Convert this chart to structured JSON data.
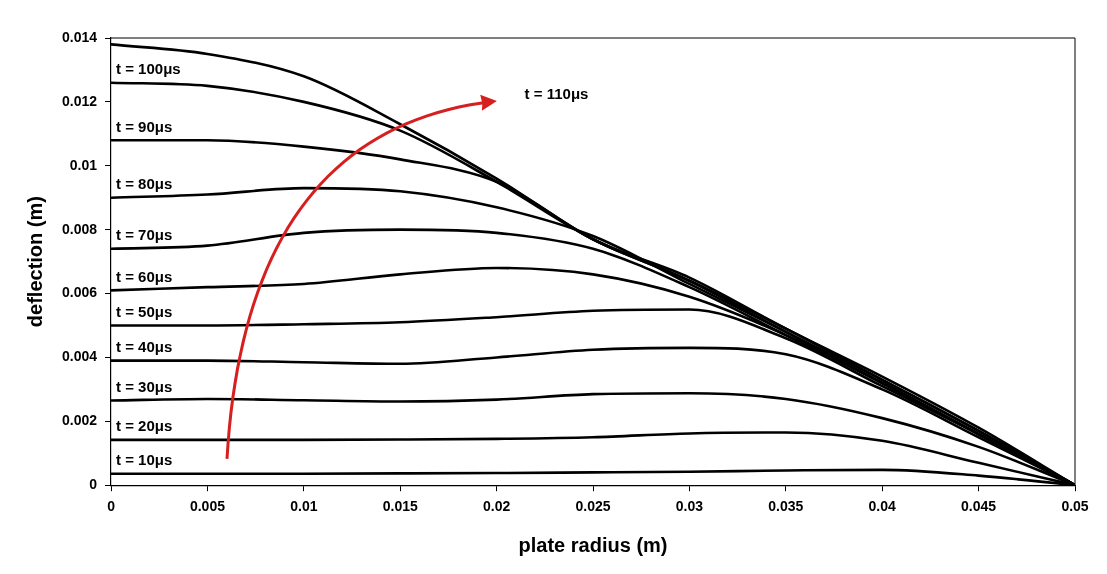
{
  "chart_data": {
    "type": "line",
    "xlabel": "plate radius (m)",
    "ylabel": "deflection (m)",
    "x": [
      0,
      0.005,
      0.01,
      0.015,
      0.02,
      0.025,
      0.03,
      0.035,
      0.04,
      0.045,
      0.05
    ],
    "xlim": [
      0,
      0.05
    ],
    "xticks": [
      0,
      0.005,
      0.01,
      0.015,
      0.02,
      0.025,
      0.03,
      0.035,
      0.04,
      0.045,
      0.05
    ],
    "ylim": [
      0,
      0.014
    ],
    "yticks": [
      0,
      0.002,
      0.004,
      0.006,
      0.008,
      0.01,
      0.012,
      0.014
    ],
    "annotations": [
      "t = 110μs"
    ],
    "grid": false,
    "legend": false,
    "marker": "none",
    "line_style": "solid",
    "series": [
      {
        "name": "t = 10μs",
        "color": "#000000",
        "values": [
          0.00036,
          0.00036,
          0.00036,
          0.00037,
          0.00038,
          0.0004,
          0.00042,
          0.00046,
          0.00048,
          0.0003,
          0
        ]
      },
      {
        "name": "t = 20μs",
        "color": "#000000",
        "values": [
          0.00142,
          0.00142,
          0.00142,
          0.00143,
          0.00145,
          0.0015,
          0.00162,
          0.00165,
          0.00139,
          0.0007,
          0
        ]
      },
      {
        "name": "t = 30μs",
        "color": "#000000",
        "values": [
          0.00265,
          0.0027,
          0.00266,
          0.00262,
          0.00268,
          0.00285,
          0.00288,
          0.0027,
          0.0021,
          0.0012,
          0
        ]
      },
      {
        "name": "t = 40μs",
        "color": "#000000",
        "values": [
          0.0039,
          0.0039,
          0.00385,
          0.0038,
          0.004,
          0.00424,
          0.0043,
          0.0041,
          0.003,
          0.0015,
          0
        ]
      },
      {
        "name": "t = 50μs",
        "color": "#000000",
        "values": [
          0.005,
          0.005,
          0.00504,
          0.0051,
          0.00526,
          0.00546,
          0.0055,
          0.0046,
          0.0031,
          0.0016,
          0
        ]
      },
      {
        "name": "t = 60μs",
        "color": "#000000",
        "values": [
          0.0061,
          0.0062,
          0.0063,
          0.0066,
          0.0068,
          0.0066,
          0.0059,
          0.0047,
          0.0032,
          0.0016,
          0
        ]
      },
      {
        "name": "t = 70μs",
        "color": "#000000",
        "values": [
          0.0074,
          0.0075,
          0.0079,
          0.008,
          0.0079,
          0.0074,
          0.0062,
          0.0047,
          0.0032,
          0.0016,
          0
        ]
      },
      {
        "name": "t = 80μs",
        "color": "#000000",
        "values": [
          0.009,
          0.0091,
          0.0093,
          0.0092,
          0.0087,
          0.0078,
          0.0063,
          0.0048,
          0.0032,
          0.0016,
          0
        ]
      },
      {
        "name": "t = 90μs",
        "color": "#000000",
        "values": [
          0.0108,
          0.0108,
          0.0106,
          0.0102,
          0.0095,
          0.0077,
          0.0064,
          0.0048,
          0.0033,
          0.0017,
          0
        ]
      },
      {
        "name": "t = 100μs",
        "color": "#000000",
        "values": [
          0.0126,
          0.0125,
          0.012,
          0.0111,
          0.0095,
          0.0077,
          0.0064,
          0.0049,
          0.0033,
          0.0017,
          0
        ]
      },
      {
        "color": "#000000",
        "values": [
          0.0138,
          0.0135,
          0.0128,
          0.0113,
          0.0096,
          0.0077,
          0.0065,
          0.0049,
          0.0034,
          0.0018,
          0
        ]
      }
    ]
  }
}
